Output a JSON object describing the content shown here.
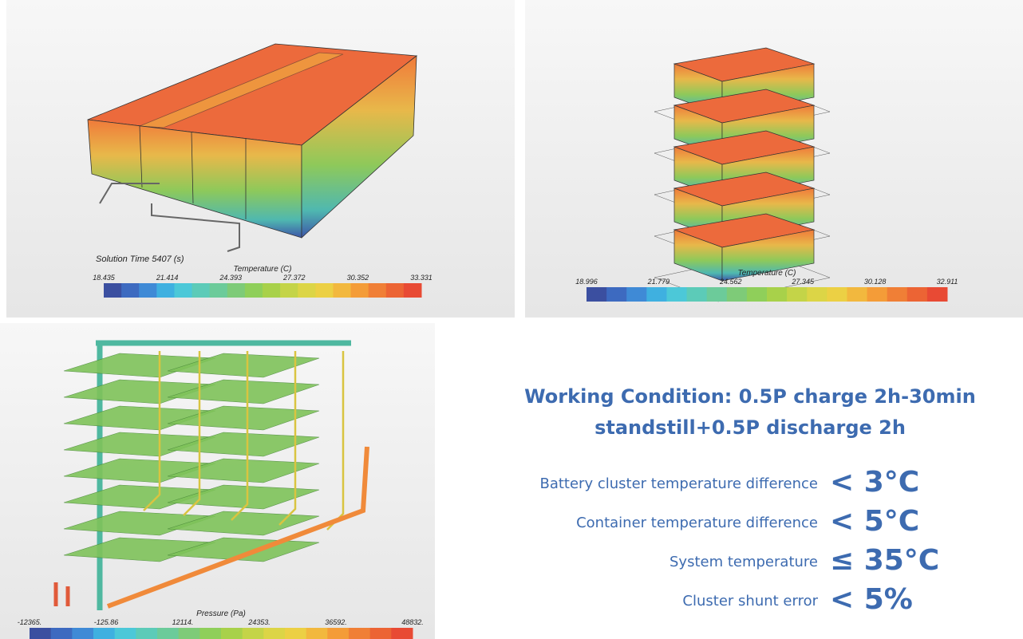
{
  "panels": [
    {
      "caption": "Solution Time 5407 (s)",
      "legend": {
        "title": "Temperature (C)",
        "labels": [
          "18.435",
          "21.414",
          "24.393",
          "27.372",
          "30.352",
          "33.331"
        ]
      }
    },
    {
      "legend": {
        "title": "Temperature (C)",
        "labels": [
          "18.996",
          "21.779",
          "24.562",
          "27.345",
          "30.128",
          "32.911"
        ]
      }
    },
    {
      "legend": {
        "title": "Pressure (Pa)",
        "labels": [
          "-12365.",
          "-125.86",
          "12114.",
          "24353.",
          "36592.",
          "48832."
        ]
      }
    }
  ],
  "heading": [
    "Working Condition: 0.5P charge 2h-30min",
    "standstill+0.5P discharge 2h"
  ],
  "metrics": [
    {
      "label": "Battery cluster temperature difference",
      "value": "< 3°C"
    },
    {
      "label": "Container temperature difference",
      "value": "< 5°C"
    },
    {
      "label": "System temperature",
      "value": "≤ 35°C"
    },
    {
      "label": "Cluster shunt error",
      "value": "< 5%"
    }
  ]
}
